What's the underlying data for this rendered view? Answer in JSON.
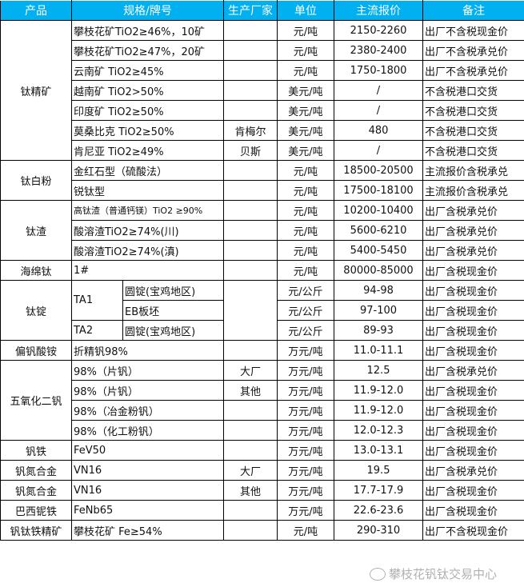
{
  "header": [
    "产品",
    "规格/牌号",
    "生产厂家",
    "单位",
    "主流报价",
    "备注"
  ],
  "colors": {
    "header_bg": "#00b0f0"
  },
  "rows": [
    {
      "product": "钛精矿",
      "spec": "攀枝花矿TiO2≥46%，10矿",
      "maker": "",
      "unit": "元/吨",
      "price": "2150-2260",
      "note": "出厂不含税现金价"
    },
    {
      "spec": "攀枝花矿TiO2≥47%，20矿",
      "maker": "",
      "unit": "元/吨",
      "price": "2380-2400",
      "note": "出厂不含税承兑价"
    },
    {
      "spec": "云南矿 TiO2≥45%",
      "maker": "",
      "unit": "元/吨",
      "price": "1750-1800",
      "note": "出厂不含税承兑价"
    },
    {
      "spec": "越南矿 TiO2>50%",
      "maker": "",
      "unit": "美元/吨",
      "price": "/",
      "note": "不含税港口交货"
    },
    {
      "spec": "印度矿 TiO2≥50%",
      "maker": "",
      "unit": "美元/吨",
      "price": "/",
      "note": "不含税港口交货"
    },
    {
      "spec": "莫桑比克 TiO2≥50%",
      "maker": "肯梅尔",
      "unit": "美元/吨",
      "price": "480",
      "note": "不含税港口交货"
    },
    {
      "spec": "肯尼亚 TiO2≥49%",
      "maker": "贝斯",
      "unit": "美元/吨",
      "price": "/",
      "note": "不含税港口交货"
    },
    {
      "product": "钛白粉",
      "spec": "金红石型（硫酸法）",
      "maker": "",
      "unit": "元/吨",
      "price": "18500-20500",
      "note": "主流报价含税承兑"
    },
    {
      "spec": "锐钛型",
      "maker": "",
      "unit": "元/吨",
      "price": "17500-18100",
      "note": "主流报价含税承兑"
    },
    {
      "product": "钛渣",
      "spec": "高钛渣（普通钙镁）TiO2 ≥90%",
      "maker": "",
      "unit": "元/吨",
      "price": "10200-10400",
      "note": "出厂含税承兑价"
    },
    {
      "spec": "酸溶渣TiO2≥74%(川)",
      "maker": "",
      "unit": "元/吨",
      "price": "5600-6210",
      "note": "出厂含税承兑价"
    },
    {
      "spec": "酸溶渣TiO2≥74%(滇)",
      "maker": "",
      "unit": "元/吨",
      "price": "5400-5450",
      "note": "出厂含税承兑价"
    },
    {
      "product": "海绵钛",
      "spec": "1#",
      "maker": "",
      "unit": "元/吨",
      "price": "80000-85000",
      "note": "出厂含税现金价"
    },
    {
      "product": "钛锭",
      "grade": "TA1",
      "spec": "圆锭(宝鸡地区)",
      "unit": "元/公斤",
      "price": "94-98",
      "note": "出厂含税现金价"
    },
    {
      "spec": "EB板坯",
      "unit": "元/公斤",
      "price": "97-100",
      "note": "出厂含税现金价"
    },
    {
      "grade": "TA2",
      "spec": "圆锭(宝鸡地区)",
      "unit": "元/公斤",
      "price": "89-93",
      "note": "出厂含税现金价"
    },
    {
      "product": "偏钒酸铵",
      "spec": "折精钒98%",
      "maker": "",
      "unit": "万元/吨",
      "price": "11.0-11.1",
      "note": "出厂含税现金价"
    },
    {
      "product": "五氧化二钒",
      "spec": "98%（片钒）",
      "maker": "大厂",
      "unit": "万元/吨",
      "price": "12.5",
      "note": "出厂含税承兑价"
    },
    {
      "spec": "98%（片钒）",
      "maker": "其他",
      "unit": "万元/吨",
      "price": "11.9-12.0",
      "note": "出厂含税现金价"
    },
    {
      "spec": "98%（冶金粉钒）",
      "maker": "",
      "unit": "万元/吨",
      "price": "11.9-12.0",
      "note": "出厂含税现金价"
    },
    {
      "spec": "98%（化工粉钒）",
      "maker": "",
      "unit": "万元/吨",
      "price": "12.0-12.3",
      "note": "出厂含税现金价"
    },
    {
      "product": "钒铁",
      "spec": "FeV50",
      "maker": "",
      "unit": "万元/吨",
      "price": "13.0-13.1",
      "note": "出厂含税现金价"
    },
    {
      "product": "钒氮合金",
      "spec": "VN16",
      "maker": "大厂",
      "unit": "万元/吨",
      "price": "19.5",
      "note": "出厂含税承兑价"
    },
    {
      "product": "钒氮合金",
      "spec": "VN16",
      "maker": "其他",
      "unit": "万元/吨",
      "price": "17.7-17.9",
      "note": "出厂含税现金价"
    },
    {
      "product": "巴西铌铁",
      "spec": "FeNb65",
      "maker": "",
      "unit": "万元/吨",
      "price": "22.6-23.6",
      "note": "出厂含税现金价"
    },
    {
      "product": "钒钛铁精矿",
      "spec": "攀枝花矿 Fe≥54%",
      "maker": "",
      "unit": "元/吨",
      "price": "290-310",
      "note": "出厂不含税现金价"
    }
  ],
  "rowspans": {
    "0": 7,
    "7": 2,
    "9": 3,
    "13": 3,
    "17": 4
  },
  "watermark": {
    "text": "攀枝花钒钛交易中心",
    "icon": "wechat-icon"
  }
}
